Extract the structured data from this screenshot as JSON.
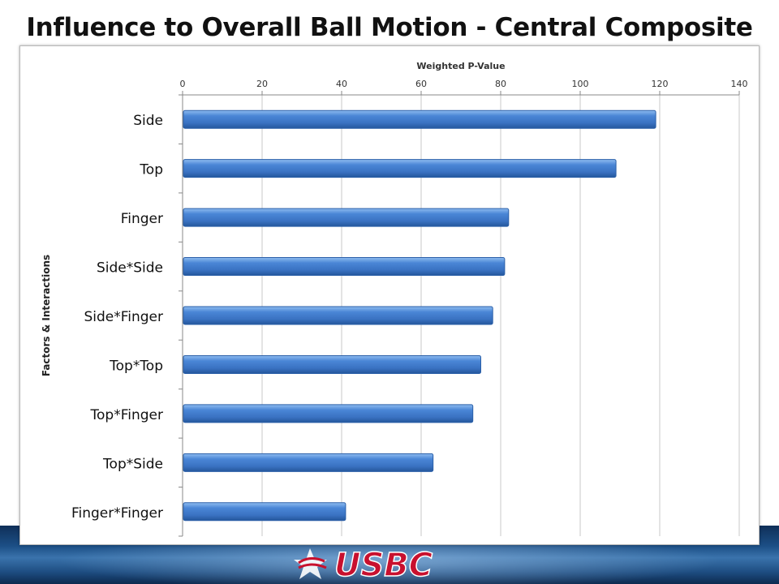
{
  "slide": {
    "title": "Influence to Overall Ball Motion - Central Composite",
    "logo_text": "USBC"
  },
  "colors": {
    "bar": "#4a86d6",
    "bar_dark": "#2a5fa8",
    "grid": "#c8c8c8",
    "footer": "#1c4f86"
  },
  "chart_data": {
    "type": "bar",
    "orientation": "horizontal",
    "title": "",
    "xlabel": "Weighted P-Value",
    "ylabel": "Factors & Interactions",
    "x_axis_position": "top",
    "xlim": [
      0,
      140
    ],
    "xticks": [
      0,
      20,
      40,
      60,
      80,
      100,
      120,
      140
    ],
    "grid": true,
    "legend": "none",
    "categories": [
      "Side",
      "Top",
      "Finger",
      "Side*Side",
      "Side*Finger",
      "Top*Top",
      "Top*Finger",
      "Top*Side",
      "Finger*Finger"
    ],
    "values": [
      119,
      109,
      82,
      81,
      78,
      75,
      73,
      63,
      41
    ]
  }
}
